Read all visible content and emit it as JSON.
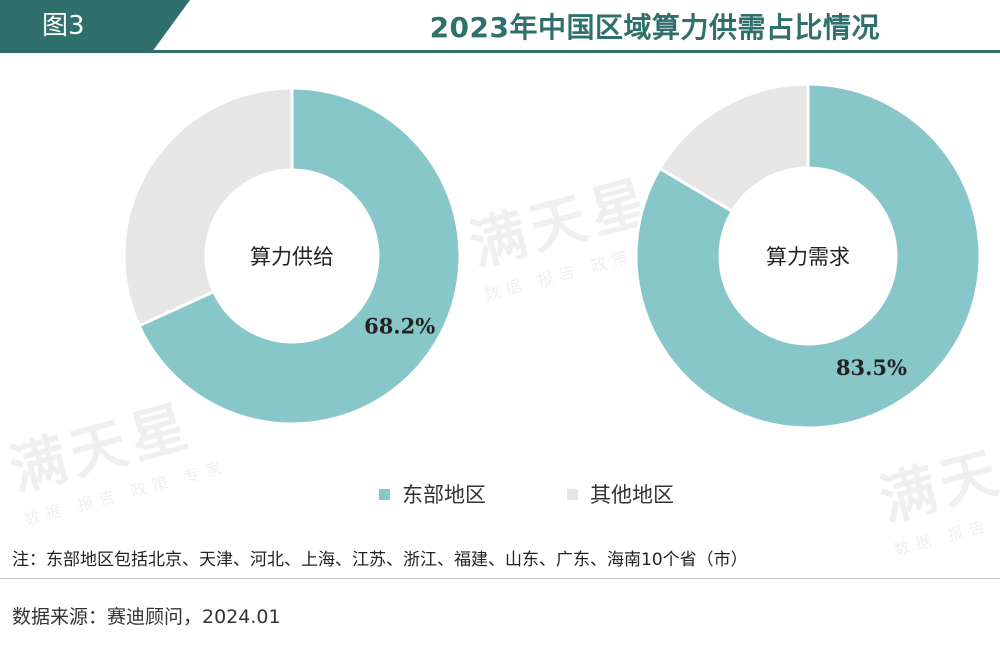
{
  "figure": {
    "tag": "图3",
    "title": "2023年中国区域算力供需占比情况"
  },
  "colors": {
    "accent": "#2f6f6c",
    "east": "#87c6c9",
    "other": "#e6e6e6"
  },
  "chart_data": [
    {
      "type": "pie",
      "center_label": "算力供给",
      "slices": [
        {
          "name": "东部地区",
          "value": 68.2,
          "label": "68.2%"
        },
        {
          "name": "其他地区",
          "value": 31.8
        }
      ]
    },
    {
      "type": "pie",
      "center_label": "算力需求",
      "slices": [
        {
          "name": "东部地区",
          "value": 83.5,
          "label": "83.5%"
        },
        {
          "name": "其他地区",
          "value": 16.5
        }
      ]
    }
  ],
  "legend": [
    {
      "name": "东部地区",
      "color": "#87c6c9"
    },
    {
      "name": "其他地区",
      "color": "#e6e6e6"
    }
  ],
  "note": "注：东部地区包括北京、天津、河北、上海、江苏、浙江、福建、山东、广东、海南10个省（市）",
  "source": "数据来源：赛迪顾问，2024.01",
  "watermark": {
    "brand": "满天星",
    "tagline": "数据 报告 政策 专家"
  }
}
